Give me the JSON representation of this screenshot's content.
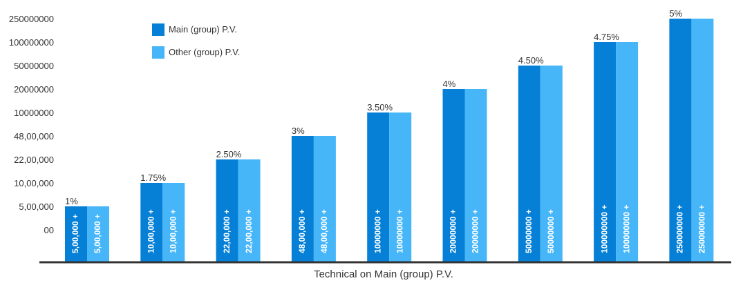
{
  "colors": {
    "main": "#0580d6",
    "other": "#47b6f9",
    "axis": "#333333",
    "text": "#333333"
  },
  "chart_data": {
    "type": "bar",
    "title": "",
    "xlabel": "Technical on Main (group) P.V.",
    "ylabel": "",
    "y_tick_labels": [
      "00",
      "5,00,000",
      "10,00,000",
      "22,00,000",
      "48,00,000",
      "10000000",
      "20000000",
      "50000000",
      "100000000",
      "250000000"
    ],
    "categories": [
      "5,00,000 +",
      "10,00,000 +",
      "22,00,000 +",
      "48,00,000 +",
      "10000000 +",
      "20000000 +",
      "50000000 +",
      "100000000 +",
      "250000000 +"
    ],
    "percent_labels": [
      "1%",
      "1.75%",
      "2.50%",
      "3%",
      "3.50%",
      "4%",
      "4.50%",
      "4.75%",
      "5%"
    ],
    "tick_level": [
      1,
      2,
      3,
      4,
      5,
      6,
      7,
      8,
      9
    ],
    "series": [
      {
        "name": "Main (group) P.V.",
        "values": [
          500000,
          1000000,
          2200000,
          4800000,
          10000000,
          20000000,
          50000000,
          100000000,
          250000000
        ]
      },
      {
        "name": "Other (group) P.V.",
        "values": [
          500000,
          1000000,
          2200000,
          4800000,
          10000000,
          20000000,
          50000000,
          100000000,
          250000000
        ]
      }
    ],
    "legend_position": "top-left",
    "grid": false
  }
}
